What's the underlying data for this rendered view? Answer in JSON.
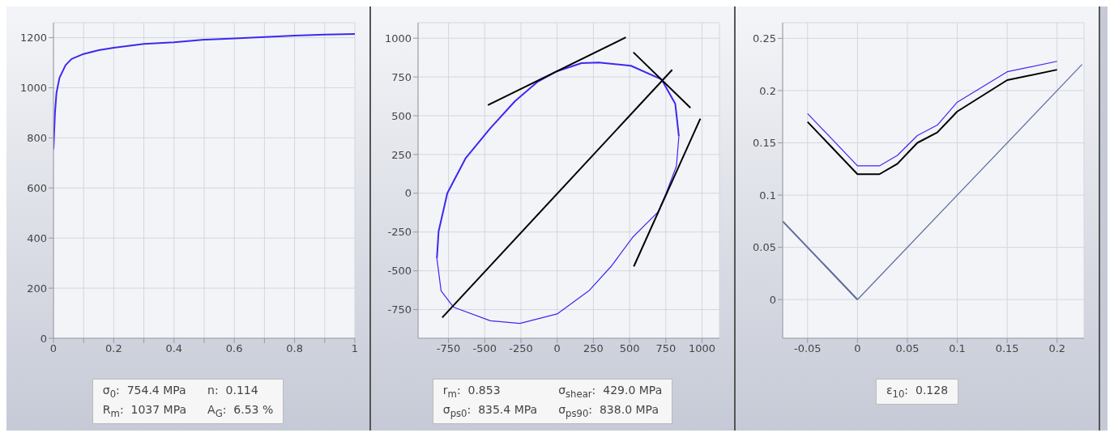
{
  "chart_data": [
    {
      "type": "line",
      "xlim": [
        0,
        1
      ],
      "ylim": [
        0,
        1260
      ],
      "xticks": [
        0,
        {
          "value": 0.1,
          "label": null
        },
        0.2,
        {
          "value": 0.3,
          "label": null
        },
        0.4,
        {
          "value": 0.5,
          "label": null
        },
        0.6,
        {
          "value": 0.7,
          "label": null
        },
        0.8,
        {
          "value": 0.9,
          "label": null
        },
        1
      ],
      "yticks": [
        0,
        200,
        400,
        600,
        800,
        1000,
        1200
      ],
      "grid": true,
      "marker": "none",
      "line_style": "solid",
      "series": [
        {
          "color": "#3c28f0",
          "x": [
            0,
            0.005,
            0.01,
            0.02,
            0.04,
            0.06,
            0.1,
            0.15,
            0.2,
            0.3,
            0.4,
            0.5,
            0.6,
            0.7,
            0.8,
            0.9,
            1.0
          ],
          "values": [
            754,
            900,
            980,
            1040,
            1090,
            1115,
            1135,
            1150,
            1160,
            1175,
            1182,
            1192,
            1197,
            1203,
            1208,
            1212,
            1215
          ]
        }
      ],
      "annotations": [
        "σ$_{0}$:  754.4 MPa",
        "n:  0.114",
        "R$_{m}$:  1037 MPa",
        "A$_{G}$:  6.53 %"
      ]
    },
    {
      "type": "line",
      "xlim": [
        -960,
        1120
      ],
      "ylim": [
        -935,
        1100
      ],
      "xticks": [
        -750,
        -500,
        -250,
        0,
        250,
        500,
        750,
        1000
      ],
      "yticks": [
        -750,
        -500,
        -250,
        0,
        250,
        500,
        750,
        1000
      ],
      "grid": true,
      "marker": "none",
      "line_style": "solid",
      "series": [
        {
          "color": "#3c28f0",
          "x": [
            -830,
            -818,
            -758,
            -631,
            -461,
            -291,
            -138,
            0,
            168,
            287,
            509,
            721,
            815,
            840
          ],
          "values": [
            -420,
            -245,
            0,
            227,
            420,
            594,
            717,
            787,
            839,
            843,
            822,
            734,
            577,
            367
          ]
        },
        {
          "color": "#3c28f0",
          "x": [
            -830,
            -801,
            -716,
            -461,
            -257,
            0,
            219,
            372,
            525,
            695,
            752,
            823,
            840
          ],
          "values": [
            -420,
            -629,
            -734,
            -822,
            -839,
            -778,
            -629,
            -472,
            -280,
            -122,
            0,
            175,
            367
          ]
        },
        {
          "color": "#000000",
          "x": [
            -793,
            794
          ],
          "values": [
            -801,
            796
          ]
        },
        {
          "color": "#000000",
          "x": [
            -478,
            474
          ],
          "values": [
            568,
            1005
          ]
        },
        {
          "color": "#000000",
          "x": [
            526,
            920
          ],
          "values": [
            909,
            551
          ]
        },
        {
          "color": "#000000",
          "x": [
            529,
            988
          ],
          "values": [
            -472,
            481
          ]
        }
      ],
      "annotations": [
        "r$_{m}$:  0.853",
        "σ$_{shear}$:  429.0 MPa",
        "σ$_{ps0}$:  835.4 MPa",
        "σ$_{ps90}$:  838.0 MPa"
      ]
    },
    {
      "type": "line",
      "xlim": [
        -0.075,
        0.227
      ],
      "ylim": [
        -0.037,
        0.265
      ],
      "xticks": [
        -0.05,
        0,
        0.05,
        0.1,
        0.15,
        0.2
      ],
      "yticks": [
        0,
        0.05,
        0.1,
        0.15,
        0.2,
        0.25
      ],
      "grid": true,
      "marker": "none",
      "line_style": "solid",
      "series": [
        {
          "color": "#5a6a9a",
          "x": [
            -0.075,
            0
          ],
          "values": [
            0.075,
            0
          ]
        },
        {
          "color": "#5a6a9a",
          "x": [
            0,
            0.225
          ],
          "values": [
            0,
            0.225
          ]
        },
        {
          "color": "#000000",
          "x": [
            -0.05,
            0,
            0.022,
            0.04,
            0.06,
            0.08,
            0.1,
            0.15,
            0.2
          ],
          "values": [
            0.17,
            0.12,
            0.12,
            0.13,
            0.15,
            0.16,
            0.18,
            0.21,
            0.22
          ]
        },
        {
          "color": "#3c28f0",
          "x": [
            -0.05,
            0,
            0.022,
            0.04,
            0.06,
            0.08,
            0.1,
            0.15,
            0.2
          ],
          "values": [
            0.178,
            0.128,
            0.128,
            0.138,
            0.157,
            0.167,
            0.189,
            0.218,
            0.228
          ]
        }
      ],
      "annotations": [
        "ε$_{10}$:  0.128"
      ]
    }
  ]
}
